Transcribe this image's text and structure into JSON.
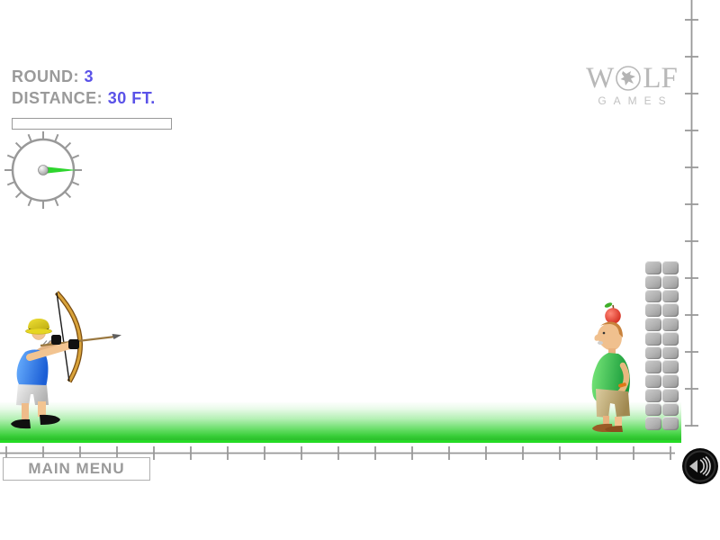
{
  "hud": {
    "round": {
      "label": "ROUND:",
      "value": "3"
    },
    "distance": {
      "label": "DISTANCE:",
      "value": "30 FT."
    },
    "power_bar": {
      "fill_percent": 0
    }
  },
  "aim_gauge": {
    "needle_angle_deg": 0,
    "tick_count": 16
  },
  "logo": {
    "prefix": "W",
    "suffix": "LF",
    "subtitle": "GAMES",
    "emblem": "wolf-head-in-circle"
  },
  "footer": {
    "main_menu_label": "MAIN MENU"
  },
  "icons": {
    "sound": "speaker-with-sound-waves-icon",
    "logo_emblem": "wolf-icon"
  },
  "scene": {
    "archer": "archer-aiming-bow-and-arrow",
    "target": "man-with-apple-on-head",
    "obstacle": "stone-block-tower",
    "ground": "grass-strip",
    "rulers": "distance-tick-rulers-bottom-and-right"
  },
  "colors": {
    "hud_label": "#9a9a9a",
    "hud_value": "#5a52e8",
    "ruler": "#999999",
    "grass": "#2fd32f",
    "needle_green": "#2ed52e",
    "bow_wood": "#d9a33a",
    "archer_shirt": "#1c5fd6",
    "target_shirt": "#2fbf4f",
    "apple_red": "#d81e10"
  }
}
